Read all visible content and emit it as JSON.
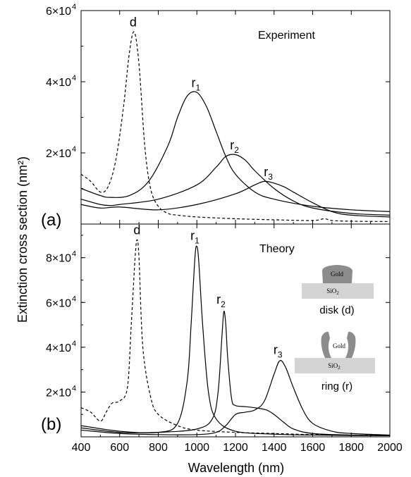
{
  "chart_data": {
    "type": "line",
    "xlabel": "Wavelength (nm)",
    "ylabel": "Extinction cross section (nm²)",
    "xlim": [
      400,
      2000
    ],
    "xticks": [
      "400",
      "600",
      "800",
      "1000",
      "1200",
      "1400",
      "1600",
      "1800",
      "2000"
    ],
    "panels": [
      {
        "label": "(a)",
        "title": "Experiment",
        "ylim": [
          0,
          60000
        ],
        "yticks": [
          {
            "mant": "2×10",
            "exp": "4",
            "value": 20000
          },
          {
            "mant": "4×10",
            "exp": "4",
            "value": 40000
          },
          {
            "mant": "6×10",
            "exp": "4",
            "value": 60000
          }
        ],
        "series": [
          {
            "name": "d",
            "style": "dashed",
            "x": [
              400,
              450,
              500,
              540,
              580,
              620,
              650,
              675,
              700,
              730,
              760,
              800,
              850,
              900,
              1000,
              1200,
              1400,
              1600,
              1660,
              1700,
              1800,
              2000
            ],
            "y": [
              14000,
              12000,
              9000,
              10500,
              18000,
              33000,
              48000,
              54000,
              45000,
              22000,
              10000,
              5000,
              3000,
              2500,
              2000,
              1500,
              1200,
              1000,
              1500,
              1000,
              800,
              700
            ]
          },
          {
            "name": "r1",
            "style": "solid",
            "x": [
              400,
              500,
              550,
              650,
              750,
              850,
              900,
              950,
              1000,
              1050,
              1100,
              1150,
              1200,
              1300,
              1400,
              1600,
              1800,
              2000
            ],
            "y": [
              10000,
              8000,
              7500,
              8000,
              12000,
              22000,
              30000,
              36000,
              37000,
              33000,
              26000,
              19000,
              14000,
              9000,
              7000,
              5000,
              4000,
              3500
            ]
          },
          {
            "name": "r2",
            "style": "solid",
            "x": [
              400,
              500,
              550,
              600,
              800,
              1000,
              1100,
              1150,
              1200,
              1250,
              1300,
              1400,
              1500,
              1600,
              1800,
              2000
            ],
            "y": [
              7000,
              5500,
              5200,
              5500,
              7000,
              11000,
              16000,
              19000,
              19500,
              18000,
              15000,
              10000,
              6500,
              4500,
              3000,
              2500
            ]
          },
          {
            "name": "r3",
            "style": "solid",
            "x": [
              400,
              500,
              600,
              800,
              1000,
              1200,
              1300,
              1350,
              1400,
              1450,
              1500,
              1600,
              1700,
              1800,
              2000
            ],
            "y": [
              5500,
              4500,
              4800,
              4000,
              5500,
              8500,
              11000,
              12000,
              11500,
              10500,
              9000,
              6000,
              3500,
              2500,
              2000
            ]
          }
        ],
        "peak_labels": [
          {
            "text": "d",
            "sub": "",
            "x": 670,
            "y": 55500
          },
          {
            "text": "r",
            "sub": "1",
            "x": 995,
            "y": 38500
          },
          {
            "text": "r",
            "sub": "2",
            "x": 1195,
            "y": 21000
          },
          {
            "text": "r",
            "sub": "3",
            "x": 1370,
            "y": 13500
          }
        ]
      },
      {
        "label": "(b)",
        "title": "Theory",
        "ylim": [
          0,
          95000
        ],
        "yticks": [
          {
            "mant": "2×10",
            "exp": "4",
            "value": 20000
          },
          {
            "mant": "4×10",
            "exp": "4",
            "value": 40000
          },
          {
            "mant": "6×10",
            "exp": "4",
            "value": 60000
          },
          {
            "mant": "8×10",
            "exp": "4",
            "value": 80000
          }
        ],
        "series": [
          {
            "name": "d",
            "style": "dashed",
            "x": [
              400,
              450,
              500,
              530,
              560,
              600,
              640,
              660,
              680,
              690,
              700,
              720,
              760,
              800,
              900,
              1000,
              1200,
              1400,
              1600,
              1800,
              2000
            ],
            "y": [
              13000,
              11000,
              7000,
              11000,
              15000,
              16000,
              22000,
              50000,
              80000,
              88000,
              80000,
              40000,
              18000,
              10000,
              5000,
              3000,
              2000,
              1500,
              1000,
              800,
              600
            ]
          },
          {
            "name": "r1",
            "style": "solid",
            "x": [
              400,
              600,
              800,
              900,
              950,
              970,
              990,
              1000,
              1010,
              1030,
              1060,
              1100,
              1200,
              1400,
              1600,
              1800,
              2000
            ],
            "y": [
              5000,
              2500,
              2000,
              6000,
              25000,
              50000,
              80000,
              85000,
              78000,
              50000,
              20000,
              8000,
              2500,
              1200,
              800,
              600,
              500
            ]
          },
          {
            "name": "r2",
            "style": "solid",
            "x": [
              400,
              600,
              800,
              1000,
              1080,
              1110,
              1130,
              1140,
              1150,
              1160,
              1180,
              1200,
              1250,
              1300,
              1360,
              1400,
              1450,
              1500,
              1600,
              1800,
              2000
            ],
            "y": [
              4000,
              2000,
              2000,
              3500,
              8000,
              20000,
              45000,
              56000,
              50000,
              35000,
              17000,
              14000,
              13500,
              13000,
              12000,
              10000,
              6500,
              3500,
              1500,
              800,
              600
            ]
          },
          {
            "name": "r3",
            "style": "solid",
            "x": [
              400,
              600,
              800,
              1000,
              1100,
              1150,
              1200,
              1250,
              1300,
              1350,
              1400,
              1430,
              1460,
              1500,
              1550,
              1600,
              1700,
              1800,
              2000
            ],
            "y": [
              3000,
              1500,
              1000,
              1000,
              2000,
              5000,
              10000,
              11000,
              12000,
              16000,
              28000,
              34000,
              31000,
              22000,
              12000,
              6000,
              2500,
              1500,
              800
            ]
          }
        ],
        "peak_labels": [
          {
            "text": "d",
            "sub": "",
            "x": 690,
            "y": 90500
          },
          {
            "text": "r",
            "sub": "1",
            "x": 990,
            "y": 88000
          },
          {
            "text": "r",
            "sub": "2",
            "x": 1125,
            "y": 59500
          },
          {
            "text": "r",
            "sub": "3",
            "x": 1420,
            "y": 37000
          }
        ]
      }
    ],
    "schematics": [
      {
        "material": "Gold",
        "substrate": "SiO",
        "sub": "2",
        "caption": "disk (d)"
      },
      {
        "material": "Gold",
        "substrate": "SiO",
        "sub": "2",
        "caption": "ring (r)"
      }
    ]
  }
}
